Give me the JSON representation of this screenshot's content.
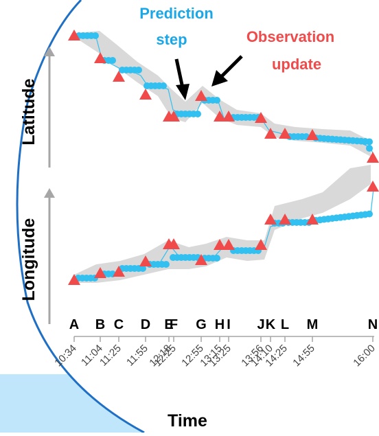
{
  "labels": {
    "prediction_line1": "Prediction",
    "prediction_line2": "step",
    "observation_line1": "Observation",
    "observation_line2": "update",
    "y_axis_top": "Latitude",
    "y_axis_bottom": "Longitude",
    "x_axis": "Time"
  },
  "colors": {
    "prediction": "#1aa7e8",
    "observation": "#f04a4a",
    "estimate_dot": "#31c0f0",
    "uncertainty_band": "#d9d9d9",
    "frame_curve": "#1f6fc4",
    "light_panel": "#bfe6fb"
  },
  "observation_letters": [
    "A",
    "B",
    "C",
    "D",
    "E",
    "F",
    "G",
    "H",
    "I",
    "J",
    "K",
    "L",
    "M",
    "N"
  ],
  "observation_times": [
    "10:34",
    "11:04",
    "11:25",
    "11:55",
    "12:18",
    "12:25",
    "12:55",
    "13:15",
    "13:25",
    "13:56",
    "14:10",
    "14:25",
    "14:55",
    "16:00"
  ]
}
